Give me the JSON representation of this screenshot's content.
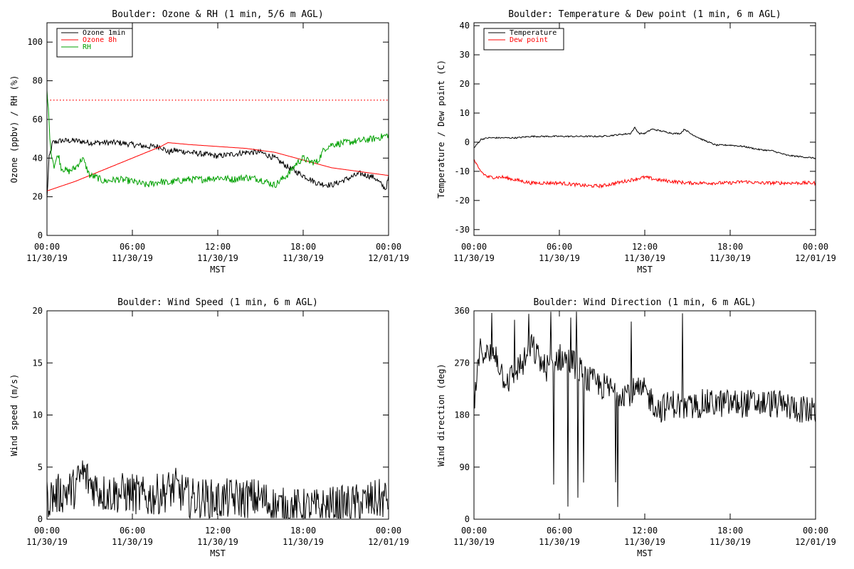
{
  "chart_data": [
    {
      "id": "ozone_rh",
      "type": "line",
      "title": "Boulder: Ozone & RH (1 min, 5/6 m AGL)",
      "xlabel": "MST",
      "ylabel": "Ozone (ppbv) / RH (%)",
      "xlim": [
        0,
        24
      ],
      "ylim": [
        0,
        110
      ],
      "yticks": [
        0,
        20,
        40,
        60,
        80,
        100
      ],
      "xticks": [
        {
          "time": "00:00",
          "date": "11/30/19"
        },
        {
          "time": "06:00",
          "date": "11/30/19"
        },
        {
          "time": "12:00",
          "date": "11/30/19"
        },
        {
          "time": "18:00",
          "date": "11/30/19"
        },
        {
          "time": "00:00",
          "date": "12/01/19"
        }
      ],
      "legend_position": "top-left",
      "reference_line": {
        "y": 70,
        "color": "#ff0000",
        "style": "dotted"
      },
      "series": [
        {
          "name": "Ozone 1min",
          "color": "#000000",
          "noise": 1.5,
          "x": [
            0,
            0.15,
            0.4,
            1,
            2,
            3,
            4,
            5,
            6,
            7,
            8,
            8.5,
            9,
            10,
            11,
            12,
            13,
            14,
            15,
            16,
            17,
            18,
            19,
            20,
            21,
            22,
            23,
            23.8,
            24
          ],
          "values": [
            19,
            40,
            48,
            49,
            49,
            48,
            48,
            48,
            47,
            46,
            46,
            43,
            44,
            43,
            42,
            41,
            42,
            43,
            43,
            40,
            35,
            31,
            27,
            26,
            29,
            32,
            30,
            24,
            30
          ]
        },
        {
          "name": "Ozone 8h",
          "color": "#ff0000",
          "noise": 0,
          "x": [
            0,
            2,
            4,
            6,
            8,
            8.5,
            10,
            12,
            14,
            16,
            18,
            20,
            22,
            24
          ],
          "values": [
            23,
            28,
            34,
            40,
            46,
            48,
            47,
            46,
            45,
            43,
            39,
            35,
            33,
            31
          ]
        },
        {
          "name": "RH",
          "color": "#00a000",
          "noise": 1.8,
          "x": [
            0,
            0.1,
            0.25,
            0.5,
            0.8,
            1,
            1.5,
            2,
            2.5,
            3,
            3.5,
            4,
            5,
            6,
            7,
            8,
            8.5,
            9,
            10,
            11,
            12,
            13,
            14,
            15,
            16,
            16.5,
            17,
            17.5,
            18,
            18.5,
            19,
            19.5,
            20,
            21,
            22,
            23,
            24
          ],
          "values": [
            74,
            65,
            45,
            36,
            42,
            35,
            33,
            35,
            40,
            31,
            30,
            28,
            29,
            28,
            26,
            28,
            27,
            28,
            29,
            29,
            30,
            29,
            30,
            29,
            26,
            29,
            32,
            37,
            40,
            38,
            38,
            45,
            47,
            48,
            49,
            50,
            52
          ]
        }
      ]
    },
    {
      "id": "temp_dew",
      "type": "line",
      "title": "Boulder: Temperature & Dew point (1 min, 6 m AGL)",
      "xlabel": "MST",
      "ylabel": "Temperature / Dew point (C)",
      "xlim": [
        0,
        24
      ],
      "ylim": [
        -32,
        41
      ],
      "yticks": [
        -30,
        -20,
        -10,
        0,
        10,
        20,
        30,
        40
      ],
      "xticks": [
        {
          "time": "00:00",
          "date": "11/30/19"
        },
        {
          "time": "06:00",
          "date": "11/30/19"
        },
        {
          "time": "12:00",
          "date": "11/30/19"
        },
        {
          "time": "18:00",
          "date": "11/30/19"
        },
        {
          "time": "00:00",
          "date": "12/01/19"
        }
      ],
      "legend_position": "top-left",
      "series": [
        {
          "name": "Temperature",
          "color": "#000000",
          "noise": 0.25,
          "x": [
            0,
            0.5,
            1,
            2,
            3,
            4,
            5,
            6,
            7,
            8,
            9,
            10,
            11,
            11.3,
            11.6,
            12,
            12.5,
            13,
            14,
            14.5,
            14.8,
            15.2,
            16,
            17,
            18,
            19,
            20,
            21,
            22,
            23,
            24
          ],
          "values": [
            -2,
            1,
            1.5,
            1.5,
            1.5,
            2,
            2,
            2,
            2,
            2,
            2,
            2.5,
            3,
            5,
            3,
            3,
            4.5,
            4,
            3,
            3,
            4.5,
            3,
            1,
            -1,
            -1,
            -1.5,
            -2.5,
            -3,
            -4.5,
            -5,
            -5.5
          ]
        },
        {
          "name": "Dew point",
          "color": "#ff0000",
          "noise": 0.6,
          "x": [
            0,
            0.3,
            0.7,
            1,
            2,
            3,
            4,
            5,
            6,
            7,
            8,
            9,
            10,
            11,
            12,
            13,
            14,
            15,
            16,
            17,
            18,
            19,
            20,
            21,
            22,
            23,
            24
          ],
          "values": [
            -6,
            -9,
            -11,
            -12,
            -12,
            -13,
            -14,
            -14,
            -14,
            -14.5,
            -15,
            -15,
            -14,
            -13,
            -12,
            -13,
            -13.5,
            -14,
            -14,
            -14,
            -14,
            -13.5,
            -14,
            -14,
            -14,
            -14,
            -14
          ]
        }
      ]
    },
    {
      "id": "wind_speed",
      "type": "line",
      "title": "Boulder: Wind Speed (1 min, 6 m AGL)",
      "xlabel": "MST",
      "ylabel": "Wind speed (m/s)",
      "xlim": [
        0,
        24
      ],
      "ylim": [
        0,
        20
      ],
      "yticks": [
        0,
        5,
        10,
        15,
        20
      ],
      "xticks": [
        {
          "time": "00:00",
          "date": "11/30/19"
        },
        {
          "time": "06:00",
          "date": "11/30/19"
        },
        {
          "time": "12:00",
          "date": "11/30/19"
        },
        {
          "time": "18:00",
          "date": "11/30/19"
        },
        {
          "time": "00:00",
          "date": "12/01/19"
        }
      ],
      "series": [
        {
          "name": "",
          "color": "#000000",
          "noise": 2.0,
          "x": [
            0,
            1,
            2,
            2.5,
            3,
            4,
            5,
            6,
            7,
            8,
            9,
            10,
            11,
            12,
            13,
            14,
            15,
            16,
            17,
            18,
            19,
            20,
            21,
            22,
            23,
            24
          ],
          "values": [
            2,
            2.5,
            3,
            4.5,
            3.5,
            2.5,
            2.5,
            2.5,
            2,
            2.5,
            3,
            2,
            2,
            1.8,
            2,
            2,
            2,
            1.2,
            1,
            1,
            1,
            1.2,
            1.3,
            1.5,
            1.8,
            2
          ]
        }
      ]
    },
    {
      "id": "wind_dir",
      "type": "line",
      "title": "Boulder: Wind Direction (1 min, 6 m AGL)",
      "xlabel": "MST",
      "ylabel": "Wind direction (deg)",
      "xlim": [
        0,
        24
      ],
      "ylim": [
        0,
        360
      ],
      "yticks": [
        0,
        90,
        180,
        270,
        360
      ],
      "xticks": [
        {
          "time": "00:00",
          "date": "11/30/19"
        },
        {
          "time": "06:00",
          "date": "11/30/19"
        },
        {
          "time": "12:00",
          "date": "11/30/19"
        },
        {
          "time": "18:00",
          "date": "11/30/19"
        },
        {
          "time": "00:00",
          "date": "12/01/19"
        }
      ],
      "series": [
        {
          "name": "",
          "color": "#000000",
          "noise": 25,
          "x": [
            0,
            0.5,
            1,
            1.5,
            2,
            2.5,
            3,
            3.5,
            4,
            4.5,
            5,
            5.5,
            6,
            7,
            8,
            9,
            10,
            11,
            12,
            13,
            14,
            15,
            16,
            17,
            18,
            19,
            20,
            21,
            22,
            23,
            24
          ],
          "values": [
            200,
            300,
            280,
            290,
            250,
            240,
            260,
            270,
            300,
            280,
            260,
            270,
            280,
            270,
            240,
            230,
            220,
            220,
            220,
            190,
            200,
            190,
            200,
            200,
            200,
            200,
            200,
            200,
            195,
            190,
            185
          ]
        }
      ]
    }
  ]
}
